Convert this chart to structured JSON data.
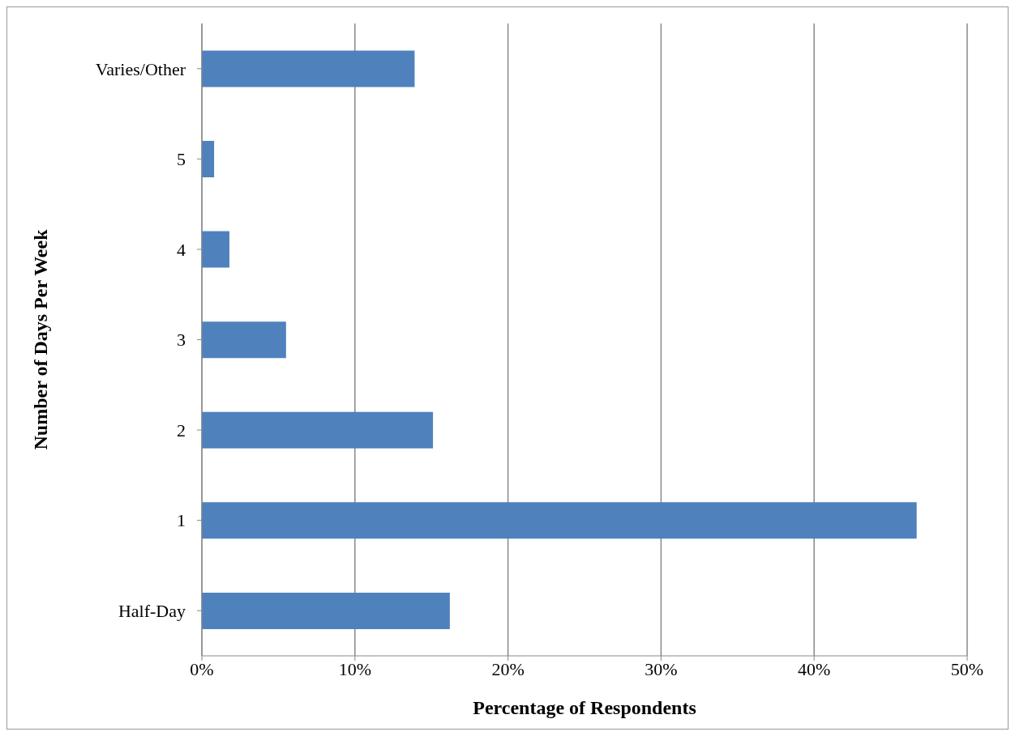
{
  "chart_data": {
    "type": "bar",
    "orientation": "horizontal",
    "xlabel": "Percentage of Respondents",
    "ylabel": "Number of Days Per Week",
    "categories": [
      "Varies/Other",
      "5",
      "4",
      "3",
      "2",
      "1",
      "Half-Day"
    ],
    "values": [
      13.9,
      0.8,
      1.8,
      5.5,
      15.1,
      46.7,
      16.2
    ],
    "color": "#4f81bd",
    "xlim": [
      0,
      50
    ],
    "xticks": [
      {
        "value": 0,
        "label": "0%"
      },
      {
        "value": 10,
        "label": "10%"
      },
      {
        "value": 20,
        "label": "20%"
      },
      {
        "value": 30,
        "label": "30%"
      },
      {
        "value": 40,
        "label": "40%"
      },
      {
        "value": 50,
        "label": "50%"
      }
    ],
    "grid": "x"
  }
}
